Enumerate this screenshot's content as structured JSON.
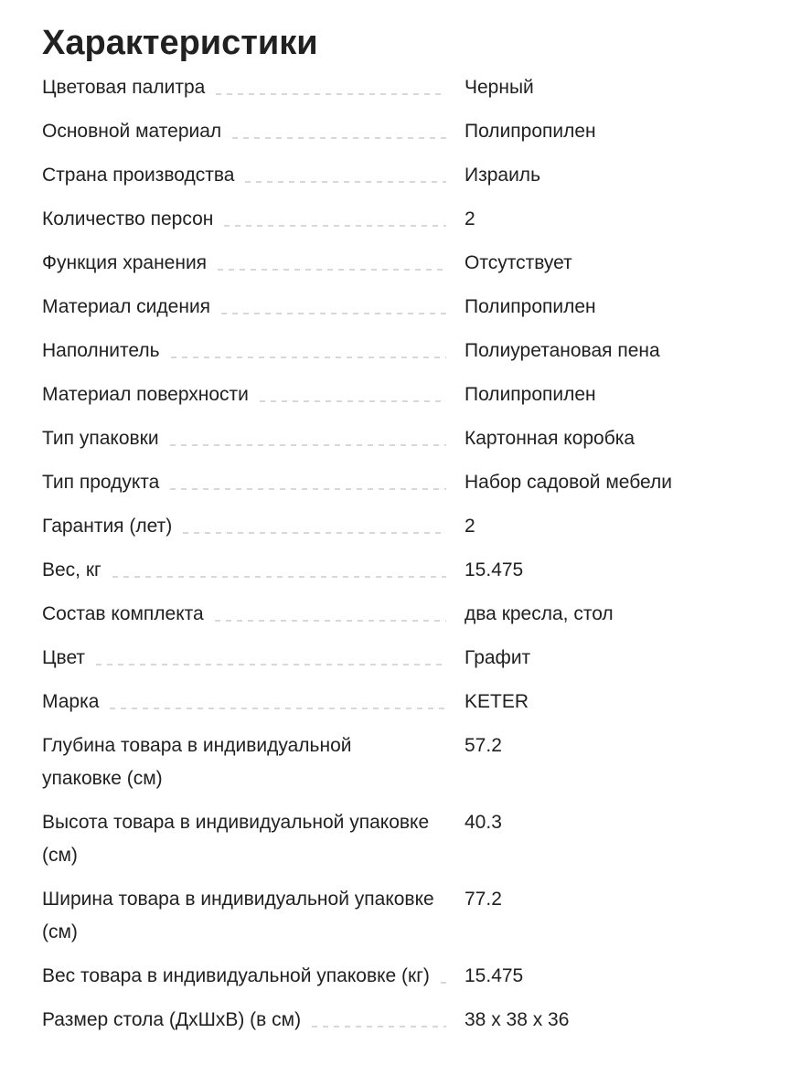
{
  "page": {
    "title": "Характеристики"
  },
  "colors": {
    "text": "#212121",
    "leader": "#d8d8d8",
    "background": "#ffffff"
  },
  "specs": {
    "rows": [
      {
        "label": "Цветовая палитра",
        "value": "Черный"
      },
      {
        "label": "Основной материал",
        "value": "Полипропилен"
      },
      {
        "label": "Страна производства",
        "value": "Израиль"
      },
      {
        "label": "Количество персон",
        "value": "2"
      },
      {
        "label": "Функция хранения",
        "value": "Отсутствует"
      },
      {
        "label": "Материал сидения",
        "value": "Полипропилен"
      },
      {
        "label": "Наполнитель",
        "value": "Полиуретановая пена"
      },
      {
        "label": "Материал поверхности",
        "value": "Полипропилен"
      },
      {
        "label": "Тип упаковки",
        "value": "Картонная коробка"
      },
      {
        "label": "Тип продукта",
        "value": "Набор садовой мебели"
      },
      {
        "label": "Гарантия (лет)",
        "value": "2"
      },
      {
        "label": "Вес, кг",
        "value": "15.475"
      },
      {
        "label": "Состав комплекта",
        "value": "два кресла, стол"
      },
      {
        "label": "Цвет",
        "value": "Графит"
      },
      {
        "label": "Марка",
        "value": "KETER"
      },
      {
        "label": "Глубина товара в индивидуальной упаковке (см)",
        "value": "57.2"
      },
      {
        "label": "Высота товара в индивидуальной упаковке (см)",
        "value": "40.3"
      },
      {
        "label": "Ширина товара в индивидуальной упаковке (см)",
        "value": "77.2"
      },
      {
        "label": "Вес товара в индивидуальной упаковке (кг)",
        "value": "15.475"
      },
      {
        "label": "Размер стола (ДхШхВ) (в см)",
        "value": "38 x 38 x 36"
      }
    ]
  }
}
